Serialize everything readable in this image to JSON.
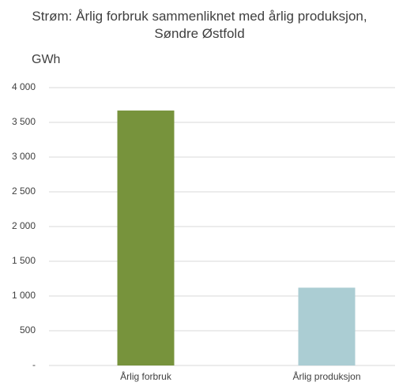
{
  "chart_data": {
    "type": "bar",
    "title": "Strøm: Årlig forbruk sammenliknet med årlig produksjon, Søndre Østfold",
    "y_label": "GWh",
    "categories": [
      "Årlig forbruk",
      "Årlig produksjon"
    ],
    "values": [
      3670,
      1120
    ],
    "colors": [
      "#77933c",
      "#abcdd3"
    ],
    "ylim": [
      0,
      4000
    ],
    "yticks": [
      {
        "value": 0,
        "label": "-"
      },
      500,
      {
        "value": 1000,
        "label": "1 000"
      },
      {
        "value": 1500,
        "label": "1 500"
      },
      {
        "value": 2000,
        "label": "2 000"
      },
      {
        "value": 2500,
        "label": "2 500"
      },
      {
        "value": 3000,
        "label": "3 000"
      },
      {
        "value": 3500,
        "label": "3 500"
      },
      {
        "value": 4000,
        "label": "4 000"
      }
    ],
    "grid": true
  }
}
